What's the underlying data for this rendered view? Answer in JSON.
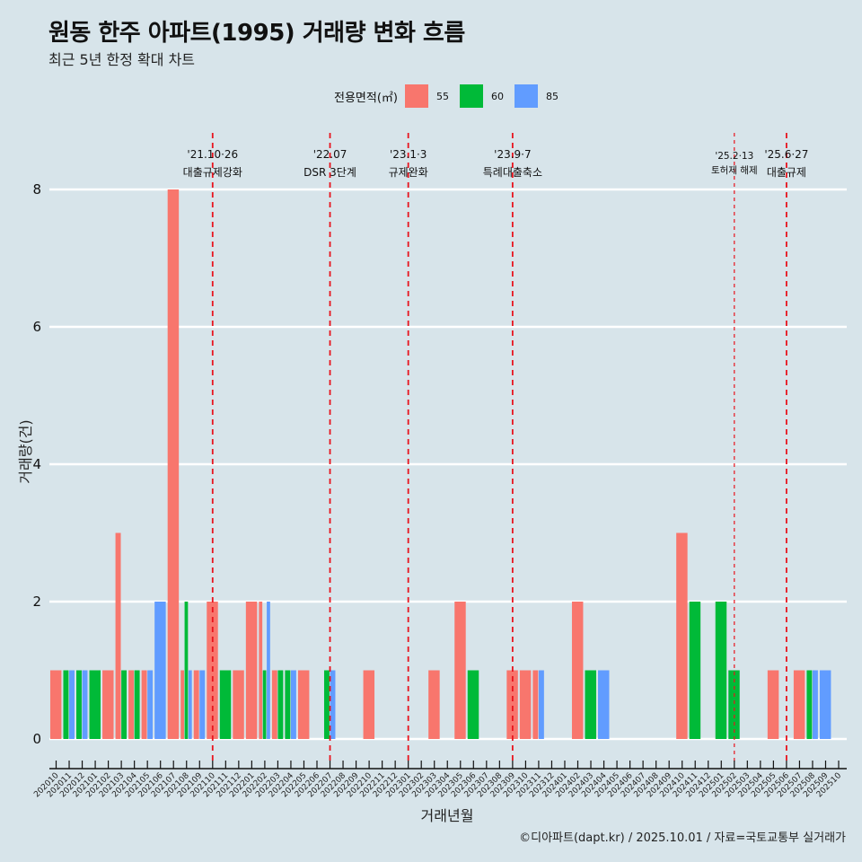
{
  "header": {
    "title": "원동 한주 아파트(1995) 거래량 변화 흐름",
    "subtitle": "최근 5년 한정 확대 차트"
  },
  "legend": {
    "title": "전용면적(㎡)",
    "items": [
      {
        "label": "55",
        "color": "#f8766d"
      },
      {
        "label": "60",
        "color": "#00ba38"
      },
      {
        "label": "85",
        "color": "#619cff"
      }
    ]
  },
  "footer": {
    "credit": "©디아파트(dapt.kr) / 2025.10.01 / 자료=국토교통부 실거래가"
  },
  "chart_data": {
    "type": "bar",
    "position": "dodge",
    "title": "원동 한주 아파트(1995) 거래량 변화 흐름",
    "subtitle": "최근 5년 한정 확대 차트",
    "xlabel": "거래년월",
    "ylabel": "거래량(건)",
    "ylim": [
      0,
      8
    ],
    "yticks": [
      0,
      2,
      4,
      6,
      8
    ],
    "grid": "horizontal major",
    "legend_position": "top",
    "categories": [
      "202010",
      "202011",
      "202012",
      "202101",
      "202102",
      "202103",
      "202104",
      "202105",
      "202106",
      "202107",
      "202108",
      "202109",
      "202110",
      "202111",
      "202112",
      "202201",
      "202202",
      "202203",
      "202204",
      "202205",
      "202206",
      "202207",
      "202208",
      "202209",
      "202210",
      "202211",
      "202212",
      "202301",
      "202302",
      "202303",
      "202304",
      "202305",
      "202306",
      "202307",
      "202308",
      "202309",
      "202310",
      "202311",
      "202312",
      "202401",
      "202402",
      "202403",
      "202404",
      "202405",
      "202406",
      "202407",
      "202408",
      "202409",
      "202410",
      "202411",
      "202412",
      "202501",
      "202502",
      "202503",
      "202504",
      "202505",
      "202506",
      "202507",
      "202508",
      "202509",
      "202510"
    ],
    "series": [
      {
        "name": "55",
        "color": "#f8766d",
        "values": [
          1,
          0,
          0,
          0,
          1,
          3,
          1,
          1,
          0,
          8,
          1,
          1,
          2,
          0,
          1,
          2,
          2,
          1,
          0,
          1,
          0,
          0,
          0,
          0,
          1,
          0,
          0,
          0,
          0,
          1,
          0,
          2,
          0,
          0,
          0,
          1,
          1,
          1,
          0,
          0,
          2,
          0,
          0,
          0,
          0,
          0,
          0,
          0,
          3,
          0,
          0,
          0,
          0,
          0,
          0,
          1,
          0,
          1,
          0,
          0,
          0
        ]
      },
      {
        "name": "60",
        "color": "#00ba38",
        "values": [
          0,
          1,
          1,
          1,
          0,
          1,
          1,
          0,
          0,
          0,
          2,
          0,
          0,
          1,
          0,
          0,
          1,
          1,
          1,
          0,
          0,
          1,
          0,
          0,
          0,
          0,
          0,
          0,
          0,
          0,
          0,
          0,
          1,
          0,
          0,
          0,
          0,
          0,
          0,
          0,
          0,
          1,
          0,
          0,
          0,
          0,
          0,
          0,
          0,
          2,
          0,
          2,
          1,
          0,
          0,
          0,
          0,
          0,
          1,
          0,
          0
        ]
      },
      {
        "name": "85",
        "color": "#619cff",
        "values": [
          0,
          1,
          1,
          0,
          0,
          0,
          0,
          1,
          2,
          0,
          1,
          1,
          0,
          0,
          0,
          0,
          2,
          0,
          1,
          0,
          0,
          1,
          0,
          0,
          0,
          0,
          0,
          0,
          0,
          0,
          0,
          0,
          0,
          0,
          0,
          0,
          0,
          1,
          0,
          0,
          0,
          0,
          1,
          0,
          0,
          0,
          0,
          0,
          0,
          0,
          0,
          0,
          0,
          0,
          0,
          0,
          0,
          0,
          1,
          1,
          0
        ]
      }
    ],
    "annotations": [
      {
        "category": "202110",
        "date": "'21.10·26",
        "label": "대출규제강화"
      },
      {
        "category": "202207",
        "date": "'22.07",
        "label": "DSR 3단계"
      },
      {
        "category": "202301",
        "date": "'23.1·3",
        "label": "규제완화"
      },
      {
        "category": "202309",
        "date": "'23.9·7",
        "label": "특례대출축소"
      },
      {
        "category": "202502",
        "date": "'25.2·13",
        "label": "토허제 해제"
      },
      {
        "category": "202506",
        "date": "'25.6·27",
        "label": "대출규제"
      }
    ],
    "annotation_line_color": "#e8141e"
  }
}
